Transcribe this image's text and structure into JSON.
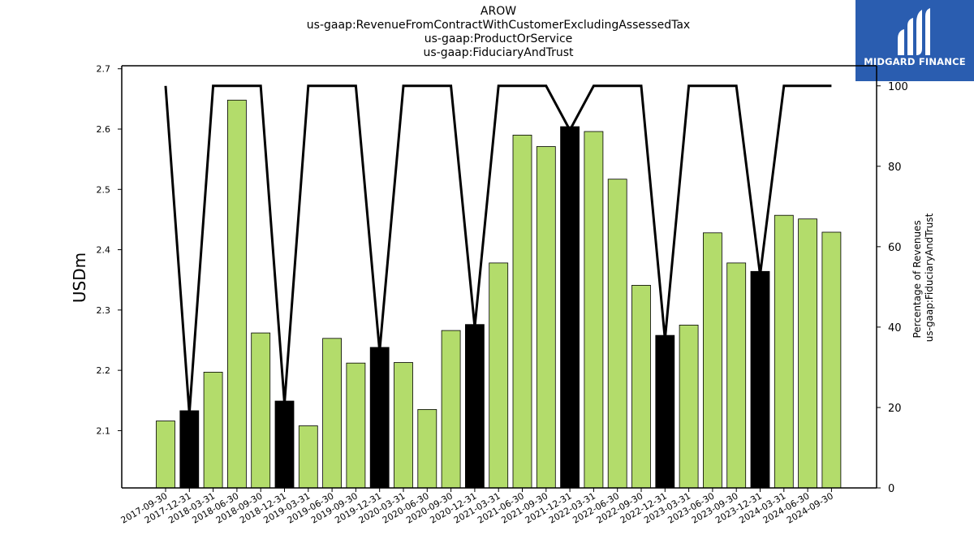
{
  "title_lines": [
    "AROW",
    "us-gaap:RevenueFromContractWithCustomerExcludingAssessedTax",
    "us-gaap:ProductOrService",
    "us-gaap:FiduciaryAndTrust"
  ],
  "logo": {
    "text": "MIDGARD FINANCE",
    "bg_color": "#2a5db0",
    "icon": "midgard-logo-icon"
  },
  "chart_data": {
    "type": "bar",
    "ylabel": "USDm",
    "y2label_lines": [
      "Percentage of Revenues",
      "us-gaap:FiduciaryAndTrust"
    ],
    "ylim": [
      2.005,
      2.705
    ],
    "y_ticks": [
      "2.1",
      "2.2",
      "2.3",
      "2.4",
      "2.5",
      "2.6",
      "2.7"
    ],
    "y2lim": [
      0,
      105
    ],
    "y2_ticks": [
      "0",
      "20",
      "40",
      "60",
      "80",
      "100"
    ],
    "colors": {
      "bar": "#b3dc6b",
      "bar_q4": "#000000",
      "line": "#000000"
    },
    "categories": [
      "2017-09-30",
      "2017-12-31",
      "2018-03-31",
      "2018-06-30",
      "2018-09-30",
      "2018-12-31",
      "2019-03-31",
      "2019-06-30",
      "2019-09-30",
      "2019-12-31",
      "2020-03-31",
      "2020-06-30",
      "2020-09-30",
      "2020-12-31",
      "2021-03-31",
      "2021-06-30",
      "2021-09-30",
      "2021-12-31",
      "2022-03-31",
      "2022-06-30",
      "2022-09-30",
      "2022-12-31",
      "2023-03-31",
      "2023-06-30",
      "2023-09-30",
      "2023-12-31",
      "2024-03-31",
      "2024-06-30",
      "2024-09-30"
    ],
    "series": [
      {
        "type": "bar",
        "values": [
          2.116,
          2.133,
          2.197,
          2.648,
          2.262,
          2.149,
          2.108,
          2.253,
          2.212,
          2.238,
          2.213,
          2.135,
          2.266,
          2.276,
          2.378,
          2.59,
          2.571,
          2.604,
          2.596,
          2.517,
          2.341,
          2.258,
          2.275,
          2.428,
          2.378,
          2.364,
          2.457,
          2.451,
          2.429
        ],
        "q4_highlight": [
          false,
          true,
          false,
          false,
          false,
          true,
          false,
          false,
          false,
          true,
          false,
          false,
          false,
          true,
          false,
          false,
          false,
          true,
          false,
          false,
          false,
          true,
          false,
          false,
          false,
          true,
          false,
          false,
          false
        ]
      },
      {
        "type": "line",
        "axis": "right",
        "values": [
          100,
          18.5,
          100,
          100,
          100,
          21,
          100,
          100,
          100,
          34,
          100,
          100,
          100,
          40,
          100,
          100,
          100,
          89,
          100,
          100,
          100,
          37,
          100,
          100,
          100,
          53,
          100,
          100,
          100
        ]
      }
    ]
  }
}
